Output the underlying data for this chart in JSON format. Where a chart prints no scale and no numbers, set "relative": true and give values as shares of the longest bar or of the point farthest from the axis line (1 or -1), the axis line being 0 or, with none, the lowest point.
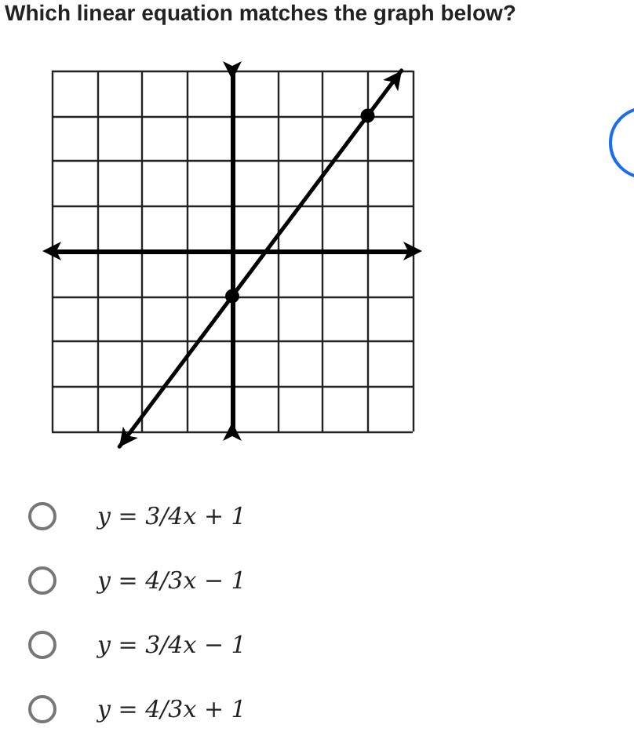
{
  "chart_data": {
    "type": "line",
    "title": "Which linear equation matches the graph below?",
    "categories": [
      null,
      null,
      null,
      null,
      null,
      null,
      null,
      null,
      null,
      null,
      null,
      null,
      null,
      null,
      null,
      null,
      null,
      null,
      null,
      null,
      null,
      null,
      null,
      null,
      null,
      null,
      null,
      null,
      null,
      null,
      null,
      null,
      null
    ],
    "series": [
      {
        "color": "#000000",
        "values": [
          null,
          null,
          null,
          null,
          null,
          null,
          -1,
          null,
          null,
          null,
          null,
          null,
          null,
          null,
          null,
          null,
          -0.231,
          null,
          null,
          null,
          null,
          null,
          null,
          null,
          null,
          null,
          null,
          null,
          0.692,
          null,
          null,
          0.923,
          null
        ]
      }
    ],
    "relative": true,
    "grid": true,
    "marker": "circle",
    "line_style": "solid",
    "annotations": [
      "y = 3/4x + 1",
      "y = 4/3x − 1",
      "y = 3/4x − 1",
      "y = 4/3x + 1"
    ]
  }
}
